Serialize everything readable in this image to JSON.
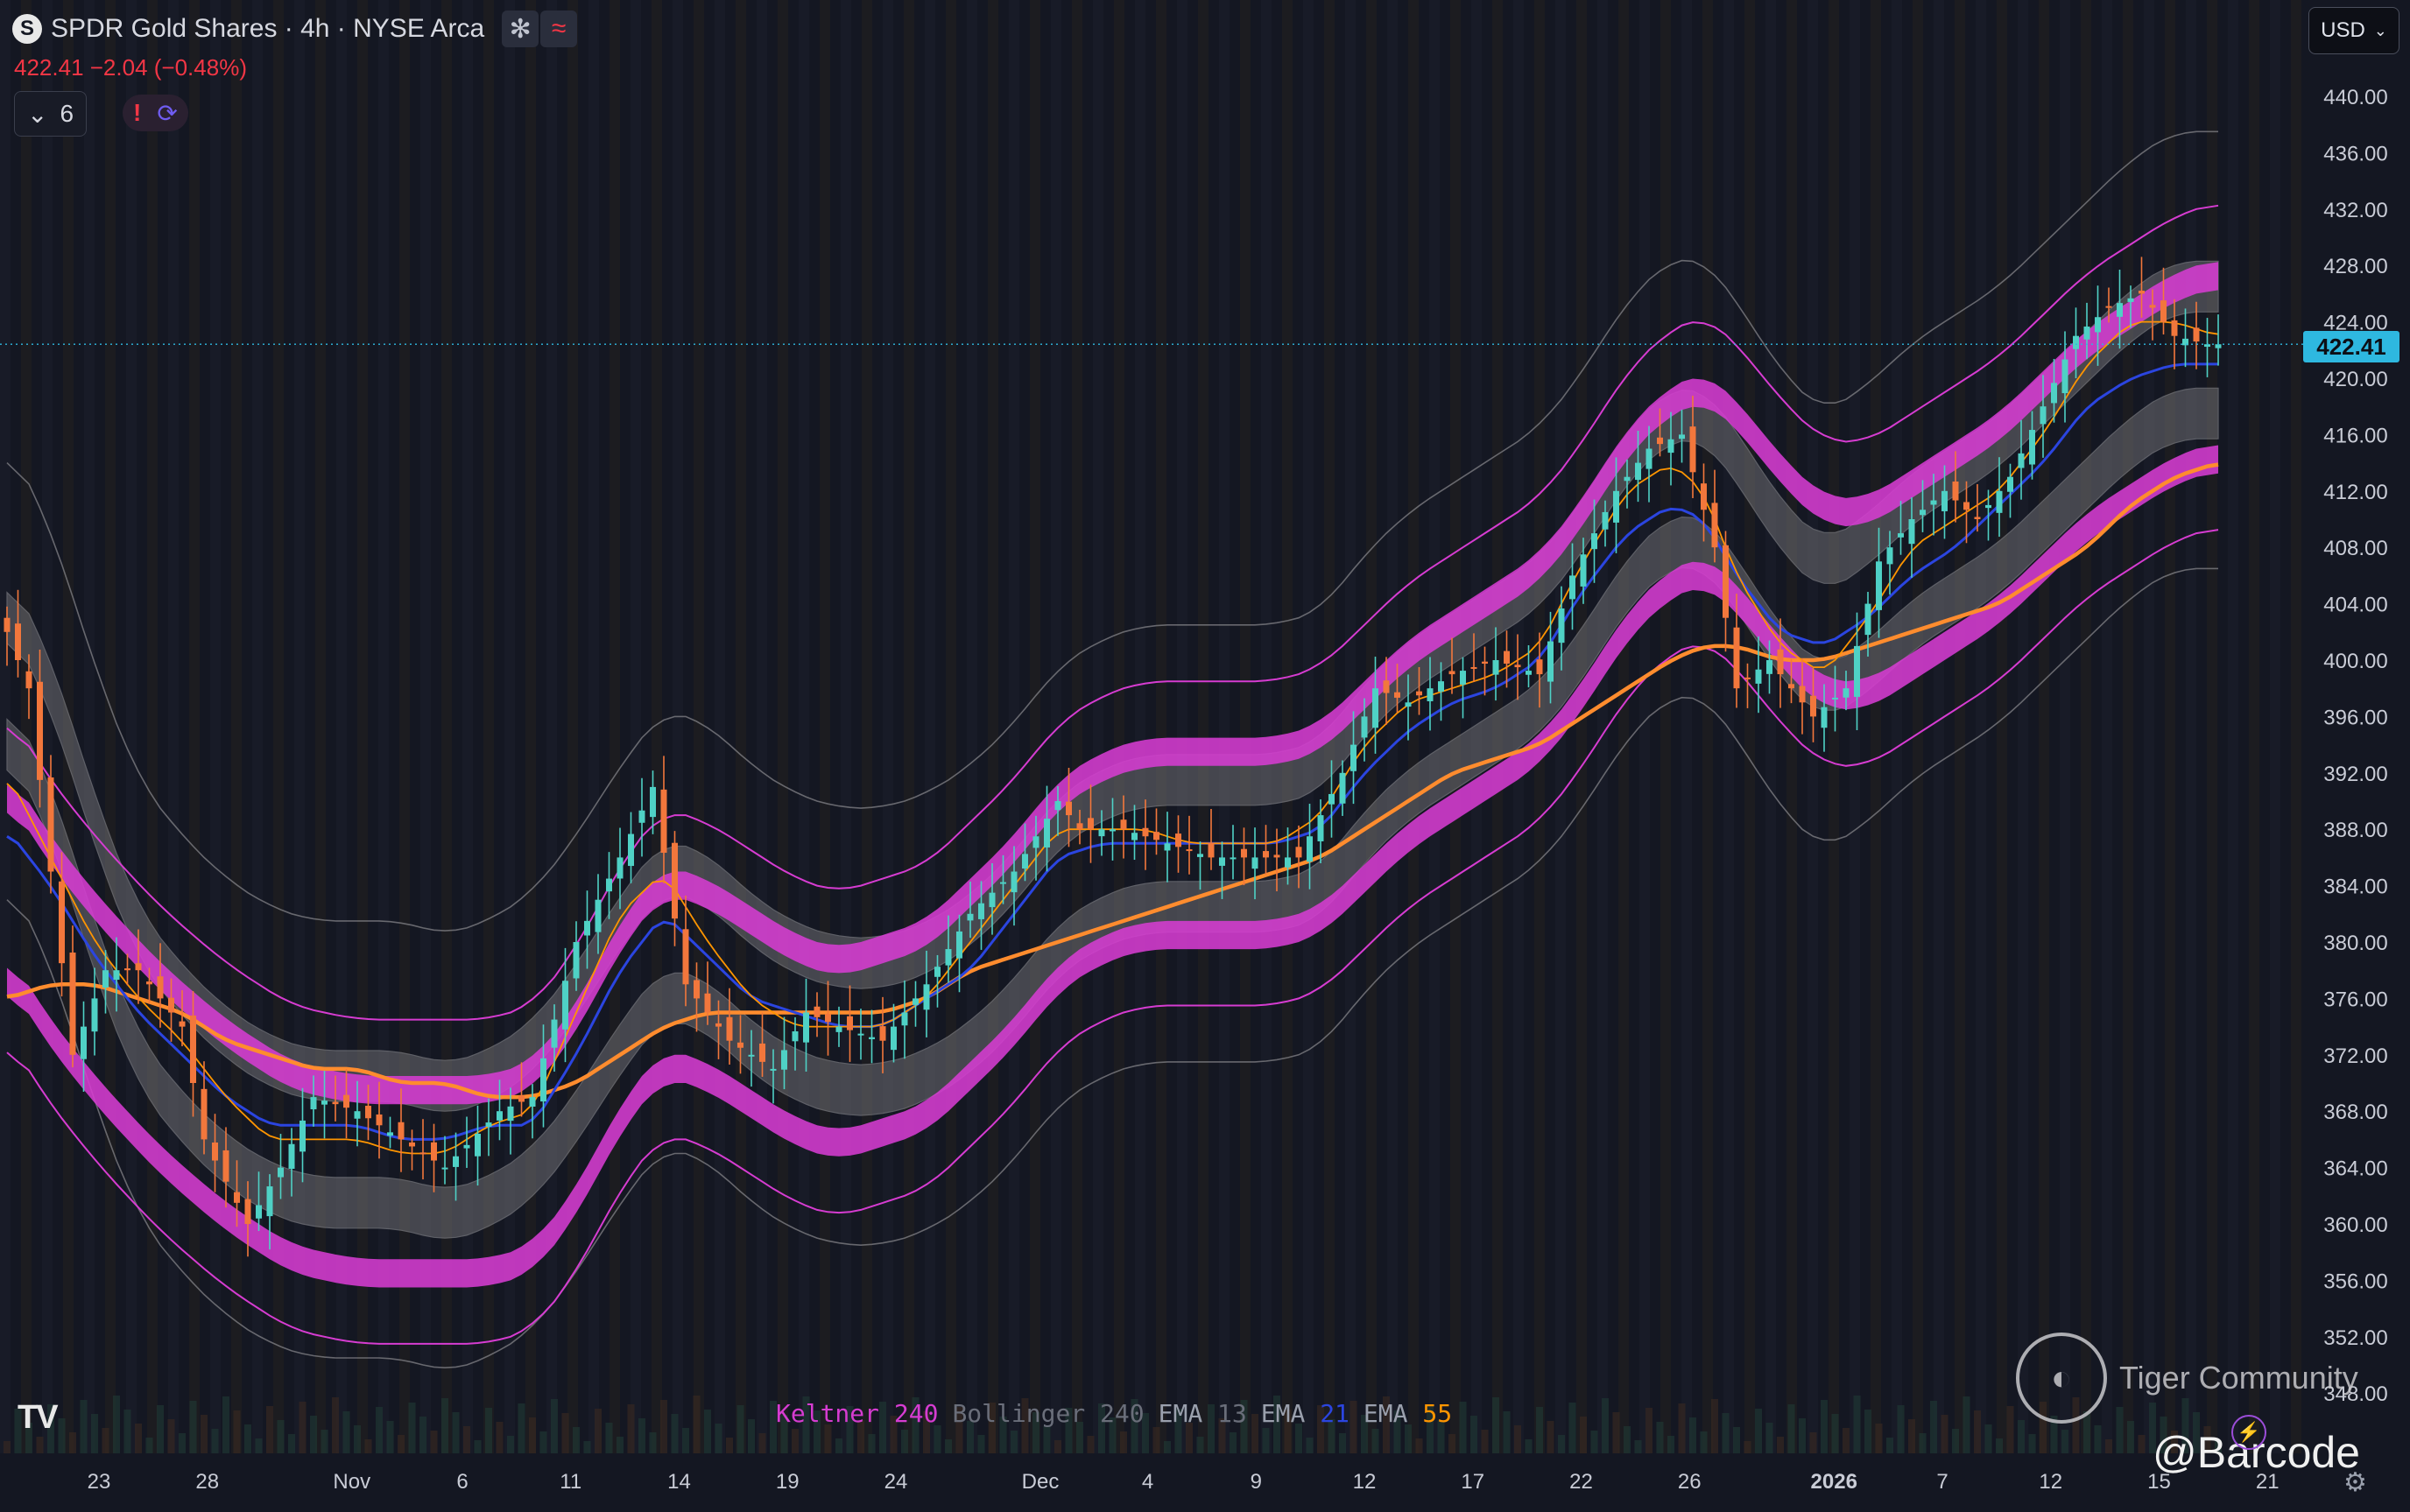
{
  "header": {
    "symbol_icon": "S",
    "title": "SPDR Gold Shares · 4h · NYSE Arca",
    "btn1_icon": "✻",
    "btn2_icon": "≈",
    "price_change": "422.41 −2.04 (−0.48%)",
    "indicator_count": "6",
    "alert_icon": "!",
    "sync_icon": "⟳"
  },
  "currency": {
    "label": "USD"
  },
  "last_price_tag": "422.41",
  "legend": {
    "keltner": "Keltner",
    "keltner_len": "240",
    "bollinger": "Bollinger",
    "bollinger_len": "240",
    "ema1": "EMA",
    "ema1_len": "13",
    "ema2": "EMA",
    "ema2_len": "21",
    "ema3": "EMA",
    "ema3_len": "55"
  },
  "watermark": {
    "text": "Tiger Community",
    "handle": "@Barcode"
  },
  "colors": {
    "background": "#141722",
    "keltner": "#d63cd1",
    "bollinger": "#8a8a8e",
    "ema13": "#ff9500",
    "ema21": "#2b45e0",
    "ema55": "#ff8c2e",
    "up": "#4fd1c5",
    "down": "#f2773c"
  },
  "chart_data": {
    "type": "line",
    "title": "SPDR Gold Shares · 4h · NYSE Arca",
    "ylim": [
      346.0,
      442.0
    ],
    "y_ticks": [
      440,
      436,
      432,
      428,
      424,
      420,
      416,
      412,
      408,
      404,
      400,
      396,
      392,
      388,
      384,
      380,
      376,
      372,
      368,
      364,
      360,
      356,
      352,
      348
    ],
    "x_ticks": [
      "23",
      "28",
      "Nov",
      "6",
      "11",
      "14",
      "19",
      "24",
      "Dec",
      "4",
      "9",
      "12",
      "17",
      "22",
      "26",
      "2026",
      "7",
      "12",
      "15",
      "21"
    ],
    "x_tick_index": [
      8.4,
      18.3,
      31.5,
      41.6,
      51.5,
      61.4,
      71.3,
      81.2,
      94.4,
      104.2,
      114.1,
      124.0,
      133.9,
      143.8,
      153.7,
      166.9,
      176.8,
      186.7,
      196.6,
      206.5
    ],
    "n_bars": 203,
    "price_anchors": [
      [
        0,
        402
      ],
      [
        2,
        398
      ],
      [
        6,
        372
      ],
      [
        9,
        378
      ],
      [
        12,
        378
      ],
      [
        16,
        374
      ],
      [
        18,
        366
      ],
      [
        22,
        360
      ],
      [
        25,
        364
      ],
      [
        28,
        369
      ],
      [
        32,
        368
      ],
      [
        36,
        366
      ],
      [
        40,
        364
      ],
      [
        45,
        368
      ],
      [
        48,
        369
      ],
      [
        52,
        380
      ],
      [
        56,
        386
      ],
      [
        59,
        391
      ],
      [
        62,
        377
      ],
      [
        66,
        373
      ],
      [
        70,
        371
      ],
      [
        73,
        375
      ],
      [
        76,
        374
      ],
      [
        80,
        373
      ],
      [
        84,
        377
      ],
      [
        88,
        382
      ],
      [
        92,
        385
      ],
      [
        96,
        390
      ],
      [
        98,
        388
      ],
      [
        102,
        388
      ],
      [
        106,
        387
      ],
      [
        110,
        386
      ],
      [
        114,
        386
      ],
      [
        118,
        386
      ],
      [
        122,
        392
      ],
      [
        125,
        398
      ],
      [
        128,
        397
      ],
      [
        132,
        399
      ],
      [
        136,
        400
      ],
      [
        140,
        399
      ],
      [
        143,
        406
      ],
      [
        147,
        412
      ],
      [
        150,
        415
      ],
      [
        153,
        416
      ],
      [
        156,
        408
      ],
      [
        158,
        398
      ],
      [
        161,
        400
      ],
      [
        165,
        396
      ],
      [
        168,
        398
      ],
      [
        171,
        407
      ],
      [
        174,
        410
      ],
      [
        177,
        412
      ],
      [
        180,
        410
      ],
      [
        183,
        413
      ],
      [
        186,
        418
      ],
      [
        189,
        423
      ],
      [
        192,
        425
      ],
      [
        195,
        426
      ],
      [
        198,
        423
      ],
      [
        201,
        422.41
      ],
      [
        202,
        422.41
      ]
    ],
    "keltner": {
      "period": 240,
      "basis": [
        [
          0,
          385
        ],
        [
          3,
          381
        ],
        [
          8,
          376
        ],
        [
          14,
          371
        ],
        [
          20,
          367
        ],
        [
          26,
          364
        ],
        [
          32,
          363
        ],
        [
          38,
          363
        ],
        [
          44,
          363
        ],
        [
          48,
          364
        ],
        [
          52,
          368
        ],
        [
          56,
          374
        ],
        [
          60,
          378
        ],
        [
          64,
          377
        ],
        [
          68,
          375
        ],
        [
          72,
          373
        ],
        [
          76,
          372
        ],
        [
          80,
          373
        ],
        [
          84,
          374
        ],
        [
          88,
          377
        ],
        [
          92,
          380
        ],
        [
          96,
          384
        ],
        [
          100,
          386
        ],
        [
          104,
          387
        ],
        [
          108,
          387
        ],
        [
          112,
          387
        ],
        [
          116,
          387
        ],
        [
          120,
          388
        ],
        [
          124,
          391
        ],
        [
          128,
          394
        ],
        [
          132,
          396
        ],
        [
          136,
          398
        ],
        [
          140,
          400
        ],
        [
          144,
          404
        ],
        [
          148,
          409
        ],
        [
          152,
          412
        ],
        [
          155,
          413
        ],
        [
          158,
          411
        ],
        [
          162,
          407
        ],
        [
          166,
          404
        ],
        [
          170,
          404
        ],
        [
          174,
          406
        ],
        [
          178,
          408
        ],
        [
          182,
          410
        ],
        [
          186,
          413
        ],
        [
          190,
          416
        ],
        [
          194,
          418
        ],
        [
          198,
          420
        ],
        [
          202,
          421
        ]
      ],
      "inner_offset": 6.5,
      "band_half_width": 1.0,
      "outer_offset": 11.5
    },
    "bollinger": {
      "period": 240,
      "basis": [
        [
          0,
          400
        ],
        [
          4,
          394
        ],
        [
          8,
          384
        ],
        [
          12,
          376
        ],
        [
          16,
          372
        ],
        [
          20,
          369
        ],
        [
          24,
          367
        ],
        [
          28,
          366
        ],
        [
          32,
          366
        ],
        [
          36,
          366
        ],
        [
          40,
          365
        ],
        [
          44,
          366
        ],
        [
          48,
          368
        ],
        [
          52,
          372
        ],
        [
          56,
          377
        ],
        [
          60,
          381
        ],
        [
          64,
          380
        ],
        [
          68,
          377
        ],
        [
          72,
          375
        ],
        [
          76,
          374
        ],
        [
          80,
          374
        ],
        [
          84,
          375
        ],
        [
          88,
          377
        ],
        [
          92,
          380
        ],
        [
          96,
          384
        ],
        [
          100,
          386
        ],
        [
          104,
          387
        ],
        [
          108,
          387
        ],
        [
          112,
          387
        ],
        [
          116,
          387
        ],
        [
          120,
          388
        ],
        [
          124,
          392
        ],
        [
          128,
          395
        ],
        [
          132,
          397
        ],
        [
          136,
          399
        ],
        [
          140,
          401
        ],
        [
          144,
          405
        ],
        [
          148,
          410
        ],
        [
          152,
          413
        ],
        [
          155,
          413
        ],
        [
          158,
          410
        ],
        [
          162,
          405
        ],
        [
          166,
          402
        ],
        [
          170,
          404
        ],
        [
          174,
          407
        ],
        [
          178,
          409
        ],
        [
          182,
          411
        ],
        [
          186,
          414
        ],
        [
          190,
          417
        ],
        [
          194,
          420
        ],
        [
          198,
          422
        ],
        [
          202,
          422
        ]
      ],
      "inner_offset": 4.5,
      "band_half_width": 1.8,
      "outer_offset": 15.5
    },
    "ema13": [
      [
        0,
        392
      ],
      [
        4,
        386
      ],
      [
        8,
        380
      ],
      [
        12,
        376
      ],
      [
        16,
        373
      ],
      [
        20,
        369
      ],
      [
        24,
        366
      ],
      [
        28,
        366
      ],
      [
        32,
        366
      ],
      [
        36,
        365
      ],
      [
        40,
        365
      ],
      [
        44,
        367
      ],
      [
        48,
        368
      ],
      [
        52,
        375
      ],
      [
        56,
        382
      ],
      [
        60,
        385
      ],
      [
        64,
        380
      ],
      [
        68,
        376
      ],
      [
        72,
        374
      ],
      [
        76,
        374
      ],
      [
        80,
        374
      ],
      [
        84,
        376
      ],
      [
        88,
        380
      ],
      [
        92,
        384
      ],
      [
        96,
        388
      ],
      [
        100,
        388
      ],
      [
        104,
        388
      ],
      [
        108,
        387
      ],
      [
        112,
        387
      ],
      [
        116,
        387
      ],
      [
        120,
        389
      ],
      [
        124,
        394
      ],
      [
        128,
        397
      ],
      [
        132,
        398
      ],
      [
        136,
        399
      ],
      [
        140,
        401
      ],
      [
        144,
        407
      ],
      [
        148,
        412
      ],
      [
        152,
        414
      ],
      [
        155,
        412
      ],
      [
        158,
        406
      ],
      [
        162,
        401
      ],
      [
        166,
        399
      ],
      [
        170,
        403
      ],
      [
        174,
        408
      ],
      [
        178,
        410
      ],
      [
        182,
        412
      ],
      [
        186,
        416
      ],
      [
        190,
        421
      ],
      [
        194,
        424
      ],
      [
        198,
        424
      ],
      [
        202,
        423
      ]
    ],
    "ema21": [
      [
        0,
        388
      ],
      [
        4,
        384
      ],
      [
        8,
        379
      ],
      [
        12,
        375
      ],
      [
        16,
        372
      ],
      [
        20,
        369
      ],
      [
        24,
        367
      ],
      [
        28,
        367
      ],
      [
        32,
        367
      ],
      [
        36,
        366
      ],
      [
        40,
        366
      ],
      [
        44,
        367
      ],
      [
        48,
        367
      ],
      [
        52,
        372
      ],
      [
        56,
        378
      ],
      [
        60,
        382
      ],
      [
        64,
        379
      ],
      [
        68,
        376
      ],
      [
        72,
        375
      ],
      [
        76,
        374
      ],
      [
        80,
        374
      ],
      [
        84,
        376
      ],
      [
        88,
        378
      ],
      [
        92,
        382
      ],
      [
        96,
        386
      ],
      [
        100,
        387
      ],
      [
        104,
        387
      ],
      [
        108,
        387
      ],
      [
        112,
        387
      ],
      [
        116,
        387
      ],
      [
        120,
        388
      ],
      [
        124,
        392
      ],
      [
        128,
        395
      ],
      [
        132,
        397
      ],
      [
        136,
        398
      ],
      [
        140,
        400
      ],
      [
        144,
        405
      ],
      [
        148,
        409
      ],
      [
        152,
        411
      ],
      [
        155,
        410
      ],
      [
        158,
        406
      ],
      [
        162,
        402
      ],
      [
        166,
        401
      ],
      [
        170,
        403
      ],
      [
        174,
        406
      ],
      [
        178,
        408
      ],
      [
        182,
        411
      ],
      [
        186,
        414
      ],
      [
        190,
        418
      ],
      [
        194,
        420
      ],
      [
        198,
        421
      ],
      [
        202,
        421
      ]
    ],
    "ema55": [
      [
        0,
        376
      ],
      [
        4,
        377
      ],
      [
        8,
        377
      ],
      [
        12,
        376
      ],
      [
        16,
        375
      ],
      [
        20,
        373
      ],
      [
        24,
        372
      ],
      [
        28,
        371
      ],
      [
        32,
        371
      ],
      [
        36,
        370
      ],
      [
        40,
        370
      ],
      [
        44,
        369
      ],
      [
        48,
        369
      ],
      [
        52,
        370
      ],
      [
        56,
        372
      ],
      [
        60,
        374
      ],
      [
        64,
        375
      ],
      [
        68,
        375
      ],
      [
        72,
        375
      ],
      [
        76,
        375
      ],
      [
        80,
        375
      ],
      [
        84,
        376
      ],
      [
        88,
        378
      ],
      [
        92,
        379
      ],
      [
        96,
        380
      ],
      [
        100,
        381
      ],
      [
        104,
        382
      ],
      [
        108,
        383
      ],
      [
        112,
        384
      ],
      [
        116,
        385
      ],
      [
        120,
        386
      ],
      [
        124,
        388
      ],
      [
        128,
        390
      ],
      [
        132,
        392
      ],
      [
        136,
        393
      ],
      [
        140,
        394
      ],
      [
        144,
        396
      ],
      [
        148,
        398
      ],
      [
        152,
        400
      ],
      [
        155,
        401
      ],
      [
        158,
        401
      ],
      [
        162,
        400
      ],
      [
        166,
        400
      ],
      [
        170,
        401
      ],
      [
        174,
        402
      ],
      [
        178,
        403
      ],
      [
        182,
        404
      ],
      [
        186,
        406
      ],
      [
        190,
        408
      ],
      [
        194,
        411
      ],
      [
        198,
        413
      ],
      [
        202,
        414
      ]
    ],
    "series": [
      {
        "name": "Keltner 240"
      },
      {
        "name": "Bollinger 240"
      },
      {
        "name": "EMA 13"
      },
      {
        "name": "EMA 21"
      },
      {
        "name": "EMA 55"
      }
    ]
  }
}
